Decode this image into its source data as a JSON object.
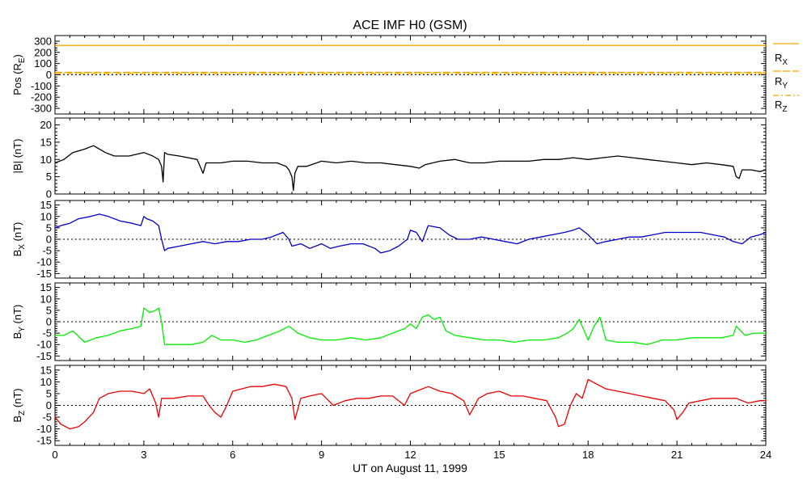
{
  "chart_data": {
    "type": "line",
    "title": "ACE IMF H0 (GSM)",
    "xlabel": "UT on August 11, 1999",
    "xlim": [
      0,
      24
    ],
    "xticks": [
      0,
      3,
      6,
      9,
      12,
      15,
      18,
      21,
      24
    ],
    "xtick_labels": [
      "0",
      "3",
      "6",
      "9",
      "12",
      "15",
      "18",
      "21",
      "24"
    ],
    "panels": [
      {
        "id": "pos",
        "ylabel_main": "Pos (R",
        "ylabel_sub": "E",
        "ylabel_end": ")",
        "ylim": [
          -350,
          350
        ],
        "yticks": [
          300,
          200,
          100,
          0,
          -100,
          -200,
          -300
        ],
        "ytick_labels": [
          "300",
          "200",
          "100",
          "0",
          "-100",
          "-200",
          "-300"
        ],
        "zero_line": true,
        "series": [
          {
            "name": "R",
            "sub": "X",
            "color": "#ffa500",
            "dash": "",
            "x": [
              0,
              24
            ],
            "y": [
              262,
              262
            ]
          },
          {
            "name": "R",
            "sub": "Y",
            "color": "#ffa500",
            "dash": "9 3",
            "x": [
              0,
              24
            ],
            "y": [
              22,
              22
            ]
          },
          {
            "name": "R",
            "sub": "Z",
            "color": "#ffa500",
            "dash": "7 3 2 3",
            "x": [
              0,
              24
            ],
            "y": [
              12,
              12
            ]
          }
        ]
      },
      {
        "id": "bmag",
        "ylabel_main": "|B| (nT)",
        "ylabel_sub": "",
        "ylabel_end": "",
        "ylim": [
          0,
          22
        ],
        "yticks": [
          20,
          15,
          10,
          5,
          0
        ],
        "ytick_labels": [
          "20",
          "15",
          "10",
          "5",
          "0"
        ],
        "zero_line": false,
        "series": [
          {
            "name": "|B|",
            "color": "#000000",
            "x": [
              0,
              0.3,
              0.6,
              1.0,
              1.3,
              1.7,
              2.0,
              2.5,
              3.0,
              3.3,
              3.5,
              3.6,
              3.65,
              3.7,
              3.8,
              4.2,
              4.8,
              5.0,
              5.1,
              5.3,
              5.6,
              6.0,
              6.5,
              7.0,
              7.5,
              7.8,
              7.9,
              8.0,
              8.05,
              8.1,
              8.2,
              8.5,
              9.0,
              9.5,
              10.0,
              10.5,
              11.0,
              11.5,
              12.0,
              12.3,
              12.5,
              13.0,
              13.5,
              14.0,
              14.5,
              15.0,
              15.5,
              16.0,
              16.5,
              17.0,
              17.5,
              18.0,
              18.5,
              19.0,
              19.5,
              20.0,
              20.5,
              21.0,
              21.5,
              22.0,
              22.5,
              22.9,
              23.0,
              23.1,
              23.2,
              23.5,
              23.8,
              24.0
            ],
            "y": [
              9,
              10,
              12,
              13,
              14,
              12,
              11,
              11,
              12,
              11,
              10,
              8,
              3.5,
              12,
              11.5,
              11,
              10,
              6,
              9,
              9,
              9,
              9.5,
              9.5,
              9,
              9,
              8,
              7,
              5,
              1,
              6,
              8,
              8,
              9.5,
              9,
              9.5,
              9,
              9,
              8.5,
              8,
              7.5,
              8.5,
              9.5,
              10,
              9,
              9,
              9.5,
              9.5,
              9.5,
              10,
              10,
              10.5,
              10,
              10.5,
              11,
              10.5,
              10,
              9.5,
              9,
              8.5,
              9,
              8.5,
              8,
              5,
              4.5,
              7,
              7,
              6.5,
              7
            ]
          }
        ]
      },
      {
        "id": "bx",
        "ylabel_main": "B",
        "ylabel_sub": "X",
        "ylabel_end": " (nT)",
        "ylim": [
          -17,
          17
        ],
        "yticks": [
          15,
          10,
          5,
          0,
          -5,
          -10,
          -15
        ],
        "ytick_labels": [
          "15",
          "10",
          "5",
          "0",
          "-5",
          "-10",
          "-15"
        ],
        "zero_line": true,
        "series": [
          {
            "name": "Bx",
            "color": "#0000cc",
            "x": [
              0,
              0.2,
              0.5,
              0.8,
              1.2,
              1.5,
              1.8,
              2.2,
              2.6,
              2.9,
              3.0,
              3.1,
              3.3,
              3.5,
              3.6,
              3.7,
              3.8,
              4.2,
              4.6,
              5.0,
              5.4,
              5.8,
              6.2,
              6.6,
              7.0,
              7.3,
              7.5,
              7.7,
              7.9,
              8.0,
              8.3,
              8.6,
              9.0,
              9.3,
              9.6,
              10.0,
              10.4,
              10.8,
              11.0,
              11.3,
              11.6,
              11.9,
              12.0,
              12.2,
              12.4,
              12.6,
              13.0,
              13.3,
              13.6,
              14.0,
              14.4,
              14.8,
              15.2,
              15.6,
              16.0,
              16.4,
              16.8,
              17.2,
              17.5,
              17.7,
              18.0,
              18.3,
              18.6,
              19.0,
              19.4,
              19.8,
              20.2,
              20.6,
              21.0,
              21.4,
              21.8,
              22.2,
              22.6,
              22.9,
              23.2,
              23.5,
              23.8,
              24.0
            ],
            "y": [
              5,
              6,
              7,
              9,
              10,
              11,
              10,
              8,
              7,
              6,
              10,
              9,
              8,
              6,
              0,
              -5,
              -4,
              -3,
              -2,
              -1,
              -2,
              -1,
              -1,
              0,
              0,
              1,
              2,
              3,
              0,
              -3,
              -2,
              -4,
              -2,
              -4,
              -3,
              -2,
              -2,
              -4,
              -6,
              -5,
              -3,
              0,
              4,
              3,
              -1,
              6,
              5,
              2,
              0,
              0,
              1,
              0,
              -1,
              -2,
              0,
              1,
              2,
              3,
              4,
              5,
              2,
              -2,
              -1,
              0,
              1,
              1,
              2,
              3,
              3,
              3,
              3,
              2,
              1,
              -1,
              -2,
              1,
              2,
              3
            ]
          }
        ]
      },
      {
        "id": "by",
        "ylabel_main": "B",
        "ylabel_sub": "Y",
        "ylabel_end": " (nT)",
        "ylim": [
          -17,
          17
        ],
        "yticks": [
          15,
          10,
          5,
          0,
          -5,
          -10,
          -15
        ],
        "ytick_labels": [
          "15",
          "10",
          "5",
          "0",
          "-5",
          "-10",
          "-15"
        ],
        "zero_line": true,
        "series": [
          {
            "name": "By",
            "color": "#00ee00",
            "x": [
              0,
              0.3,
              0.6,
              1.0,
              1.4,
              1.8,
              2.2,
              2.6,
              2.9,
              3.0,
              3.2,
              3.4,
              3.5,
              3.6,
              3.7,
              3.8,
              4.2,
              4.6,
              5.0,
              5.3,
              5.6,
              6.0,
              6.4,
              6.8,
              7.2,
              7.6,
              7.9,
              8.2,
              8.6,
              9.0,
              9.5,
              10.0,
              10.5,
              11.0,
              11.4,
              11.8,
              12.0,
              12.2,
              12.4,
              12.6,
              12.8,
              13.0,
              13.2,
              13.5,
              14.0,
              14.5,
              15.0,
              15.5,
              16.0,
              16.5,
              17.0,
              17.3,
              17.5,
              17.7,
              18.0,
              18.2,
              18.4,
              18.6,
              19.0,
              19.5,
              20.0,
              20.5,
              21.0,
              21.5,
              22.0,
              22.5,
              22.9,
              23.0,
              23.3,
              23.6,
              24.0
            ],
            "y": [
              -6,
              -6,
              -4,
              -9,
              -7,
              -6,
              -4,
              -3,
              -2,
              6,
              4,
              5,
              6,
              0,
              -10,
              -10,
              -10,
              -10,
              -9,
              -6,
              -8,
              -8,
              -9,
              -8,
              -6,
              -4,
              -2,
              -5,
              -7,
              -8,
              -8,
              -7,
              -8,
              -7,
              -5,
              -3,
              -1,
              -3,
              2,
              3,
              1,
              2,
              -4,
              -6,
              -7,
              -8,
              -8,
              -9,
              -8,
              -8,
              -7,
              -5,
              -3,
              1,
              -8,
              -2,
              2,
              -8,
              -9,
              -9,
              -10,
              -8,
              -8,
              -7,
              -7,
              -7,
              -6,
              -2,
              -6,
              -5,
              -5
            ]
          }
        ]
      },
      {
        "id": "bz",
        "ylabel_main": "B",
        "ylabel_sub": "Z",
        "ylabel_end": " (nT)",
        "ylim": [
          -17,
          17
        ],
        "yticks": [
          15,
          10,
          5,
          0,
          -5,
          -10,
          -15
        ],
        "ytick_labels": [
          "15",
          "10",
          "5",
          "0",
          "-5",
          "-10",
          "-15"
        ],
        "zero_line": true,
        "series": [
          {
            "name": "Bz",
            "color": "#ee0000",
            "x": [
              0,
              0.2,
              0.5,
              0.8,
              1.0,
              1.3,
              1.5,
              1.8,
              2.2,
              2.6,
              3.0,
              3.2,
              3.4,
              3.5,
              3.6,
              4.0,
              4.5,
              5.0,
              5.2,
              5.4,
              5.6,
              5.8,
              6.0,
              6.3,
              6.6,
              7.0,
              7.4,
              7.8,
              8.0,
              8.1,
              8.3,
              8.6,
              9.0,
              9.4,
              9.8,
              10.2,
              10.6,
              11.0,
              11.4,
              11.8,
              12.0,
              12.2,
              12.4,
              12.6,
              13.0,
              13.4,
              13.8,
              14.0,
              14.3,
              14.6,
              15.0,
              15.4,
              15.8,
              16.2,
              16.6,
              16.9,
              17.0,
              17.2,
              17.4,
              17.6,
              17.8,
              18.0,
              18.3,
              18.6,
              19.0,
              19.4,
              19.8,
              20.2,
              20.6,
              20.9,
              21.0,
              21.2,
              21.4,
              21.8,
              22.2,
              22.6,
              23.0,
              23.4,
              23.8,
              24.0
            ],
            "y": [
              -5,
              -8,
              -10,
              -9,
              -7,
              -3,
              3,
              5,
              6,
              6,
              5,
              7,
              1,
              -5,
              3,
              3,
              4,
              4,
              0,
              -3,
              -5,
              0,
              6,
              7,
              8,
              8,
              9,
              8,
              3,
              -6,
              3,
              4,
              5,
              0,
              2,
              3,
              3,
              4,
              4,
              0,
              5,
              6,
              7,
              8,
              6,
              5,
              2,
              -4,
              3,
              5,
              6,
              4,
              4,
              3,
              2,
              -5,
              -9,
              -8,
              0,
              5,
              3,
              11,
              9,
              7,
              6,
              5,
              4,
              3,
              2,
              -2,
              -6,
              -3,
              1,
              2,
              3,
              3,
              3,
              1,
              2,
              2
            ]
          }
        ]
      }
    ],
    "legend": [
      "R_X",
      "R_Y",
      "R_Z"
    ]
  }
}
